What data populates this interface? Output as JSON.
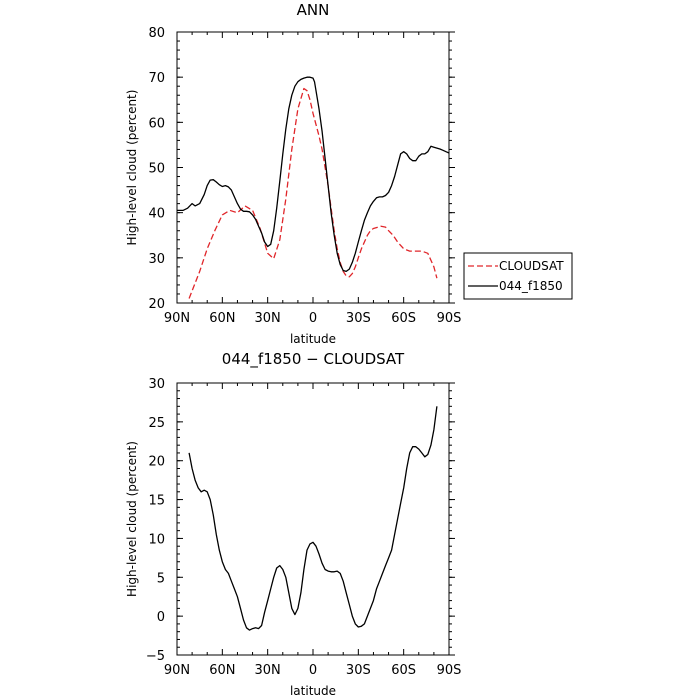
{
  "chart_data": [
    {
      "type": "line",
      "title": "ANN",
      "xlabel": "latitude",
      "ylabel": "High-level cloud (percent)",
      "xlim": [
        -90,
        90
      ],
      "ylim": [
        20,
        80
      ],
      "x_ticks": [
        -90,
        -60,
        -30,
        0,
        30,
        60,
        90
      ],
      "x_tick_labels": [
        "90N",
        "60N",
        "30N",
        "0",
        "30S",
        "60S",
        "90S"
      ],
      "y_ticks": [
        20,
        30,
        40,
        50,
        60,
        70,
        80
      ],
      "y_tick_labels": [
        "20",
        "30",
        "40",
        "50",
        "60",
        "70",
        "80"
      ],
      "grid": false,
      "legend_position": "outside-right",
      "series": [
        {
          "name": "CLOUDSAT",
          "color": "#e0262a",
          "style": "dashed",
          "x": [
            -82,
            -75,
            -70,
            -65,
            -60,
            -55,
            -50,
            -45,
            -40,
            -35,
            -30,
            -26,
            -22,
            -18,
            -14,
            -10,
            -6,
            -4,
            -2,
            0,
            2,
            4,
            6,
            8,
            10,
            12,
            14,
            16,
            18,
            20,
            22,
            24,
            26,
            28,
            30,
            32,
            34,
            36,
            38,
            40,
            45,
            48,
            50,
            53,
            56,
            60,
            64,
            68,
            72,
            76,
            80,
            82
          ],
          "y": [
            21,
            27,
            32,
            36,
            39.5,
            40.5,
            40,
            41.5,
            40.5,
            36.5,
            31,
            29.8,
            34,
            43,
            54,
            63,
            67.5,
            67,
            65,
            62,
            59.5,
            57,
            54,
            50,
            46,
            41,
            36,
            32,
            29,
            27,
            26,
            25.8,
            26.5,
            28,
            30,
            32,
            33.5,
            35,
            36,
            36.5,
            37,
            36.8,
            36,
            35,
            33.5,
            32,
            31.5,
            31.5,
            31.5,
            31,
            28,
            25.5
          ]
        },
        {
          "name": "044_f1850",
          "color": "#000000",
          "style": "solid",
          "x": [
            -90,
            -86,
            -83,
            -80,
            -78,
            -75,
            -72,
            -70,
            -68,
            -66,
            -64,
            -62,
            -60,
            -58,
            -56,
            -54,
            -52,
            -50,
            -48,
            -46,
            -44,
            -42,
            -40,
            -38,
            -36,
            -34,
            -32,
            -30,
            -28,
            -26,
            -24,
            -22,
            -20,
            -18,
            -16,
            -14,
            -12,
            -10,
            -8,
            -6,
            -4,
            -2,
            0,
            1,
            2,
            4,
            6,
            8,
            10,
            12,
            14,
            16,
            18,
            20,
            22,
            24,
            26,
            28,
            30,
            32,
            34,
            36,
            38,
            40,
            42,
            44,
            46,
            48,
            50,
            52,
            54,
            56,
            58,
            60,
            62,
            64,
            66,
            68,
            70,
            72,
            74,
            76,
            78,
            80,
            82,
            84,
            86,
            88,
            90
          ],
          "y": [
            40.5,
            40.5,
            41,
            42,
            41.5,
            42,
            44,
            46,
            47.2,
            47.3,
            46.8,
            46.2,
            45.8,
            46,
            45.7,
            45,
            43.5,
            42,
            40.8,
            40.3,
            40.3,
            40.2,
            39.5,
            38.5,
            37,
            35.5,
            33.5,
            32.5,
            33,
            36,
            41,
            47,
            53,
            58.5,
            63,
            66,
            68,
            69,
            69.5,
            69.8,
            70,
            70,
            69.8,
            69,
            67,
            63,
            58,
            52,
            46,
            40,
            35,
            31,
            28.5,
            27.2,
            27,
            27.5,
            29,
            31,
            33.5,
            36,
            38.3,
            40,
            41.5,
            42.5,
            43.3,
            43.5,
            43.5,
            43.8,
            44.5,
            46,
            48,
            50.5,
            53,
            53.5,
            53,
            52,
            51.5,
            51.5,
            52.5,
            53,
            53,
            53.5,
            54.7,
            54.5,
            54.3,
            54.1,
            53.8,
            53.5,
            53.2
          ]
        }
      ]
    },
    {
      "type": "line",
      "title": "044_f1850 − CLOUDSAT",
      "xlabel": "latitude",
      "ylabel": "High-level cloud (percent)",
      "xlim": [
        -90,
        90
      ],
      "ylim": [
        -5,
        30
      ],
      "x_ticks": [
        -90,
        -60,
        -30,
        0,
        30,
        60,
        90
      ],
      "x_tick_labels": [
        "90N",
        "60N",
        "30N",
        "0",
        "30S",
        "60S",
        "90S"
      ],
      "y_ticks": [
        -5,
        0,
        5,
        10,
        15,
        20,
        25,
        30
      ],
      "y_tick_labels": [
        "−5",
        "0",
        "5",
        "10",
        "15",
        "20",
        "25",
        "30"
      ],
      "grid": false,
      "series": [
        {
          "color": "#000000",
          "style": "solid",
          "x": [
            -82,
            -80,
            -78,
            -76,
            -74,
            -72,
            -70,
            -68,
            -66,
            -64,
            -62,
            -60,
            -58,
            -56,
            -54,
            -52,
            -50,
            -48,
            -46,
            -44,
            -42,
            -40,
            -38,
            -36,
            -34,
            -32,
            -30,
            -28,
            -26,
            -24,
            -22,
            -20,
            -18,
            -16,
            -14,
            -12,
            -10,
            -8,
            -6,
            -4,
            -2,
            0,
            2,
            4,
            6,
            8,
            10,
            12,
            14,
            16,
            18,
            20,
            22,
            24,
            26,
            28,
            30,
            32,
            34,
            36,
            38,
            40,
            42,
            44,
            46,
            48,
            50,
            52,
            54,
            56,
            58,
            60,
            62,
            64,
            66,
            68,
            70,
            72,
            74,
            76,
            78,
            80,
            82
          ],
          "y": [
            21,
            19,
            17.5,
            16.5,
            16,
            16.2,
            16,
            15,
            13,
            10.5,
            8.5,
            7,
            6,
            5.5,
            4.5,
            3.5,
            2.5,
            1,
            -0.5,
            -1.5,
            -1.8,
            -1.6,
            -1.5,
            -1.6,
            -1.2,
            0.5,
            2,
            3.5,
            5,
            6.2,
            6.5,
            6,
            5,
            3,
            1,
            0.2,
            1,
            3,
            6,
            8.5,
            9.3,
            9.5,
            9,
            8,
            6.8,
            6,
            5.8,
            5.7,
            5.7,
            5.8,
            5.5,
            4.5,
            3,
            1.5,
            0,
            -1,
            -1.4,
            -1.3,
            -1,
            0,
            1,
            2,
            3.5,
            4.5,
            5.5,
            6.5,
            7.5,
            8.5,
            10.5,
            12.5,
            14.5,
            16.5,
            19,
            21,
            21.8,
            21.8,
            21.5,
            21,
            20.5,
            20.8,
            22,
            24,
            27
          ]
        }
      ]
    }
  ]
}
